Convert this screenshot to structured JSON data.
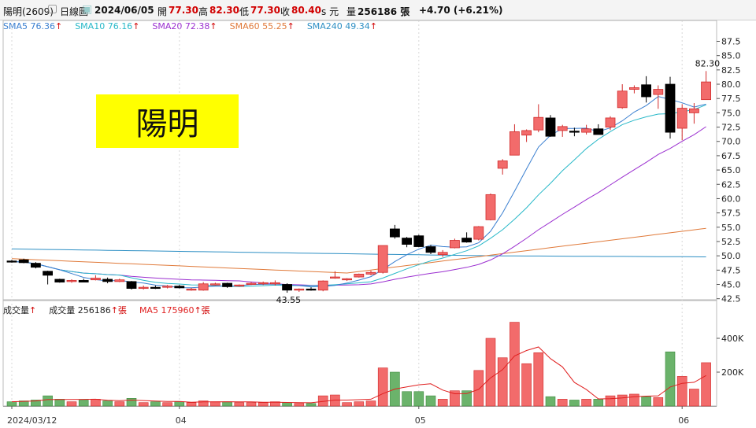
{
  "header": {
    "stock": "陽明(2609)",
    "chart_type": "日線圖",
    "date": "2024/06/05",
    "open_label": "開",
    "open": "77.30",
    "high_label": "高",
    "high": "82.30",
    "low_label": "低",
    "low": "77.30",
    "close_label": "收",
    "close": "80.40",
    "unit": "s 元",
    "vol_label": "量",
    "volume": "256186 張",
    "change": "+4.70 (+6.21%)"
  },
  "name_box": "陽明",
  "ma_legend": [
    {
      "label": "SMA5 76.36",
      "color": "#3a7fd0"
    },
    {
      "label": "SMA10 76.16",
      "color": "#27b8c8"
    },
    {
      "label": "SMA20 72.38",
      "color": "#9b2fd0"
    },
    {
      "label": "SMA60 55.25",
      "color": "#e07a3a"
    },
    {
      "label": "SMA240 49.34",
      "color": "#2d8fc4"
    }
  ],
  "vol_legend": [
    {
      "label": "成交量",
      "color": "#222222"
    },
    {
      "label": "成交量 256186",
      "suffix": "張",
      "color": "#222222"
    },
    {
      "label": "MA5 175960",
      "suffix": "張",
      "color": "#e02020"
    }
  ],
  "chart_data": {
    "type": "candlestick",
    "price_ticks": [
      "87.5",
      "85.0",
      "82.5",
      "80.0",
      "77.5",
      "75.0",
      "72.5",
      "70.0",
      "67.5",
      "65.0",
      "62.5",
      "60.0",
      "57.5",
      "55.0",
      "52.5",
      "50.0",
      "47.5",
      "45.0",
      "42.5"
    ],
    "volume_ticks": [
      "400K",
      "200K"
    ],
    "x_labels": [
      {
        "label": "2024/03/12",
        "index": 0
      },
      {
        "label": "04",
        "index": 14
      },
      {
        "label": "05",
        "index": 34
      },
      {
        "label": "06",
        "index": 56
      }
    ],
    "annotations": [
      {
        "text": "82.30",
        "index": 58
      },
      {
        "text": "43.55",
        "index": 23
      }
    ],
    "candles": [
      {
        "o": 49.1,
        "h": 49.3,
        "l": 48.8,
        "c": 49.0,
        "v": 25
      },
      {
        "o": 49.3,
        "h": 49.5,
        "l": 48.7,
        "c": 48.8,
        "v": 30
      },
      {
        "o": 48.7,
        "h": 48.9,
        "l": 47.8,
        "c": 48.0,
        "v": 35
      },
      {
        "o": 47.3,
        "h": 47.4,
        "l": 45.0,
        "c": 46.6,
        "v": 60
      },
      {
        "o": 45.9,
        "h": 46.0,
        "l": 45.3,
        "c": 45.4,
        "v": 40
      },
      {
        "o": 45.6,
        "h": 45.9,
        "l": 45.3,
        "c": 45.7,
        "v": 25
      },
      {
        "o": 45.7,
        "h": 46.0,
        "l": 45.4,
        "c": 45.4,
        "v": 35
      },
      {
        "o": 45.8,
        "h": 46.6,
        "l": 45.7,
        "c": 46.1,
        "v": 40
      },
      {
        "o": 45.9,
        "h": 46.2,
        "l": 45.2,
        "c": 45.5,
        "v": 30
      },
      {
        "o": 45.5,
        "h": 46.0,
        "l": 45.4,
        "c": 45.8,
        "v": 25
      },
      {
        "o": 45.5,
        "h": 45.6,
        "l": 44.1,
        "c": 44.3,
        "v": 45
      },
      {
        "o": 44.3,
        "h": 44.8,
        "l": 44.1,
        "c": 44.5,
        "v": 20
      },
      {
        "o": 44.5,
        "h": 44.8,
        "l": 44.2,
        "c": 44.3,
        "v": 25
      },
      {
        "o": 44.5,
        "h": 44.9,
        "l": 44.3,
        "c": 44.7,
        "v": 20
      },
      {
        "o": 44.7,
        "h": 44.9,
        "l": 44.3,
        "c": 44.4,
        "v": 25
      },
      {
        "o": 44.1,
        "h": 44.4,
        "l": 43.9,
        "c": 44.2,
        "v": 20
      },
      {
        "o": 44.0,
        "h": 45.4,
        "l": 43.9,
        "c": 45.1,
        "v": 30
      },
      {
        "o": 45.0,
        "h": 45.3,
        "l": 44.8,
        "c": 45.1,
        "v": 25
      },
      {
        "o": 45.2,
        "h": 45.3,
        "l": 44.4,
        "c": 44.6,
        "v": 25
      },
      {
        "o": 44.8,
        "h": 45.0,
        "l": 44.6,
        "c": 44.9,
        "v": 20
      },
      {
        "o": 45.1,
        "h": 45.4,
        "l": 44.9,
        "c": 45.2,
        "v": 20
      },
      {
        "o": 45.2,
        "h": 45.5,
        "l": 44.9,
        "c": 45.3,
        "v": 20
      },
      {
        "o": 45.3,
        "h": 45.7,
        "l": 44.8,
        "c": 45.3,
        "v": 25
      },
      {
        "o": 45.0,
        "h": 45.2,
        "l": 43.55,
        "c": 44.0,
        "v": 20
      },
      {
        "o": 44.0,
        "h": 44.3,
        "l": 43.7,
        "c": 44.2,
        "v": 15
      },
      {
        "o": 44.2,
        "h": 44.5,
        "l": 43.9,
        "c": 44.1,
        "v": 15
      },
      {
        "o": 44.0,
        "h": 45.7,
        "l": 43.8,
        "c": 45.6,
        "v": 60
      },
      {
        "o": 46.3,
        "h": 47.3,
        "l": 46.0,
        "c": 46.3,
        "v": 65
      },
      {
        "o": 45.8,
        "h": 46.1,
        "l": 45.6,
        "c": 46.0,
        "v": 20
      },
      {
        "o": 46.3,
        "h": 46.9,
        "l": 46.2,
        "c": 46.8,
        "v": 25
      },
      {
        "o": 46.8,
        "h": 47.4,
        "l": 46.6,
        "c": 47.1,
        "v": 30
      },
      {
        "o": 47.1,
        "h": 51.8,
        "l": 46.9,
        "c": 51.8,
        "v": 225
      },
      {
        "o": 54.7,
        "h": 55.4,
        "l": 53.0,
        "c": 53.3,
        "v": 200
      },
      {
        "o": 53.1,
        "h": 53.3,
        "l": 51.5,
        "c": 52.0,
        "v": 85
      },
      {
        "o": 53.5,
        "h": 53.7,
        "l": 51.5,
        "c": 51.6,
        "v": 85
      },
      {
        "o": 51.6,
        "h": 51.9,
        "l": 50.3,
        "c": 50.6,
        "v": 60
      },
      {
        "o": 50.2,
        "h": 51.0,
        "l": 49.8,
        "c": 50.6,
        "v": 40
      },
      {
        "o": 51.4,
        "h": 53.0,
        "l": 51.3,
        "c": 52.7,
        "v": 90
      },
      {
        "o": 53.1,
        "h": 54.1,
        "l": 52.3,
        "c": 52.4,
        "v": 90
      },
      {
        "o": 52.9,
        "h": 55.2,
        "l": 52.7,
        "c": 55.1,
        "v": 210
      },
      {
        "o": 56.3,
        "h": 60.9,
        "l": 56.2,
        "c": 60.7,
        "v": 400
      },
      {
        "o": 65.3,
        "h": 66.9,
        "l": 64.2,
        "c": 66.6,
        "v": 285
      },
      {
        "o": 67.6,
        "h": 73.0,
        "l": 67.6,
        "c": 71.7,
        "v": 495
      },
      {
        "o": 71.1,
        "h": 72.1,
        "l": 69.9,
        "c": 71.9,
        "v": 250
      },
      {
        "o": 72.0,
        "h": 76.5,
        "l": 71.6,
        "c": 74.2,
        "v": 315
      },
      {
        "o": 74.1,
        "h": 74.6,
        "l": 70.8,
        "c": 70.9,
        "v": 55
      },
      {
        "o": 71.9,
        "h": 72.9,
        "l": 70.8,
        "c": 72.6,
        "v": 40
      },
      {
        "o": 71.8,
        "h": 72.4,
        "l": 70.9,
        "c": 71.7,
        "v": 35
      },
      {
        "o": 71.6,
        "h": 72.9,
        "l": 71.2,
        "c": 72.2,
        "v": 40
      },
      {
        "o": 72.2,
        "h": 73.0,
        "l": 71.3,
        "c": 71.2,
        "v": 40
      },
      {
        "o": 72.5,
        "h": 74.4,
        "l": 72.0,
        "c": 74.1,
        "v": 60
      },
      {
        "o": 75.9,
        "h": 80.0,
        "l": 75.7,
        "c": 78.8,
        "v": 65
      },
      {
        "o": 79.1,
        "h": 79.8,
        "l": 78.4,
        "c": 79.4,
        "v": 70
      },
      {
        "o": 79.9,
        "h": 81.4,
        "l": 76.8,
        "c": 77.8,
        "v": 55
      },
      {
        "o": 78.2,
        "h": 79.8,
        "l": 75.7,
        "c": 79.1,
        "v": 50
      },
      {
        "o": 80.0,
        "h": 81.3,
        "l": 70.5,
        "c": 71.6,
        "v": 320
      },
      {
        "o": 72.3,
        "h": 76.5,
        "l": 70.2,
        "c": 75.8,
        "v": 175
      },
      {
        "o": 75.0,
        "h": 76.7,
        "l": 73.1,
        "c": 75.7,
        "v": 100
      },
      {
        "o": 77.3,
        "h": 82.3,
        "l": 77.3,
        "c": 80.4,
        "v": 256
      }
    ]
  },
  "colors": {
    "up": "#f26b6b",
    "up_edge": "#d12b2b",
    "down": "#000000",
    "vol_up": "#f26b6b",
    "vol_down": "#6bb36b",
    "grid": "#d8d8d8"
  }
}
